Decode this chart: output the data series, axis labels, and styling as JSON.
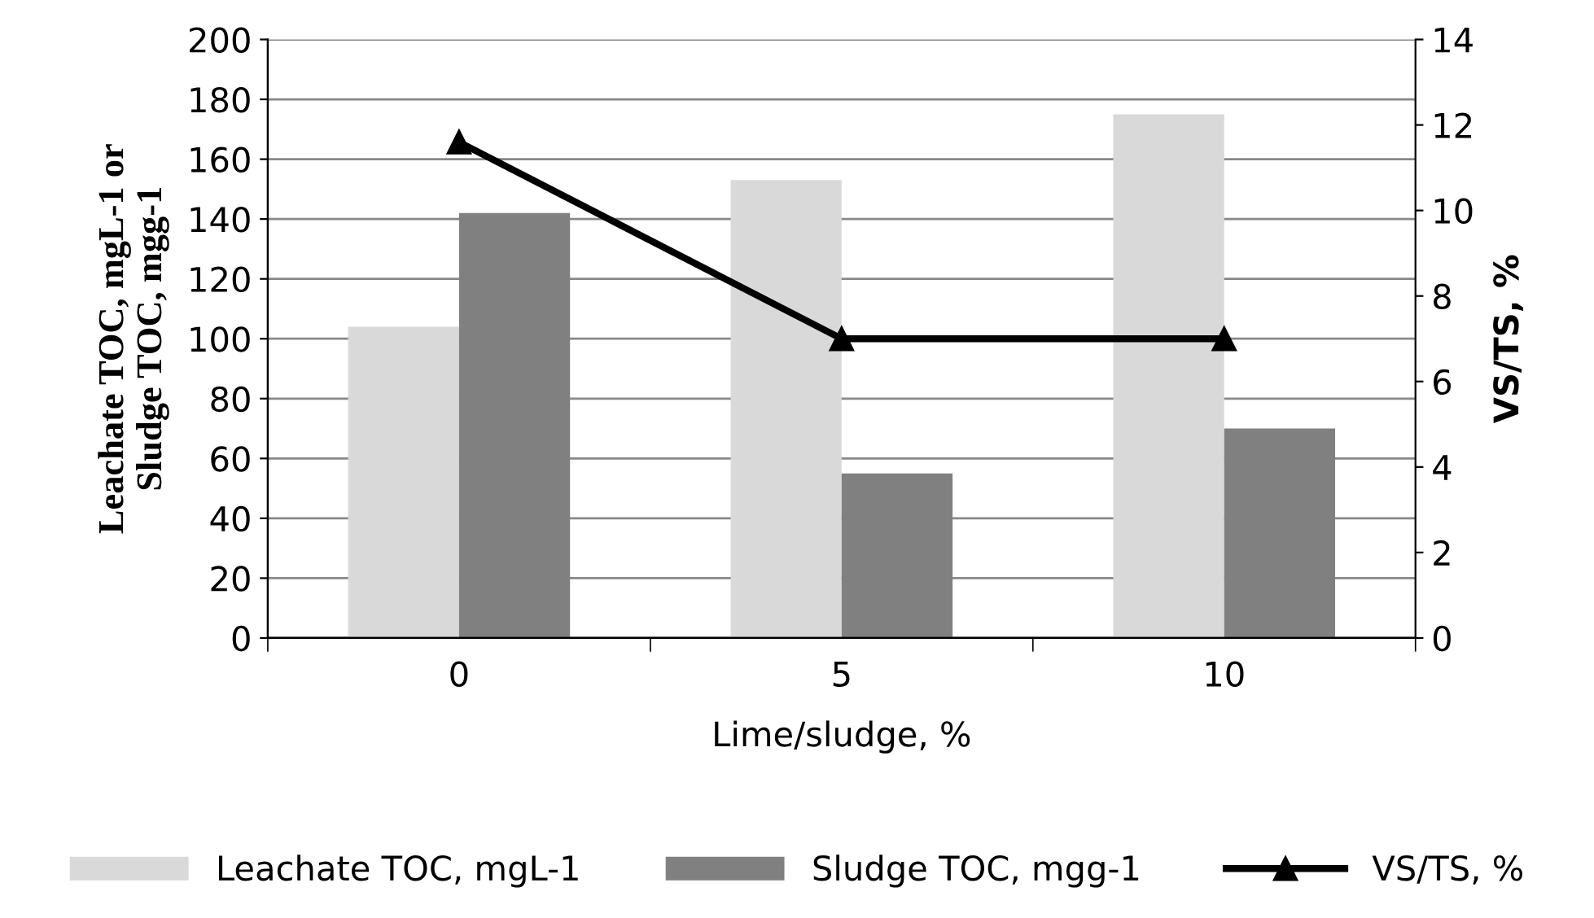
{
  "chart_data": {
    "type": "bar",
    "xlabel": "Lime/sludge, %",
    "ylabel": "Leachate TOC, mgL-1 or\nSludge TOC, mgg-1",
    "y2label": "VS/TS, %",
    "categories": [
      "0",
      "5",
      "10"
    ],
    "series": [
      {
        "name": "Leachate TOC, mgL-1",
        "color": "#d9d9d9",
        "values": [
          104,
          153,
          175
        ]
      },
      {
        "name": "Sludge TOC, mgg-1",
        "color": "#808080",
        "values": [
          142,
          55,
          70
        ]
      },
      {
        "name": "VS/TS, %",
        "type": "line",
        "axis": "y2",
        "color": "#000000",
        "marker": "triangle",
        "values": [
          11.6,
          7,
          7
        ]
      }
    ],
    "ylim": [
      0,
      200
    ],
    "yticks": [
      0,
      20,
      40,
      60,
      80,
      100,
      120,
      140,
      160,
      180,
      200
    ],
    "y2lim": [
      0,
      14
    ],
    "y2ticks": [
      0,
      2,
      4,
      6,
      8,
      10,
      12,
      14
    ],
    "grid": "y",
    "legend": "bottom"
  }
}
